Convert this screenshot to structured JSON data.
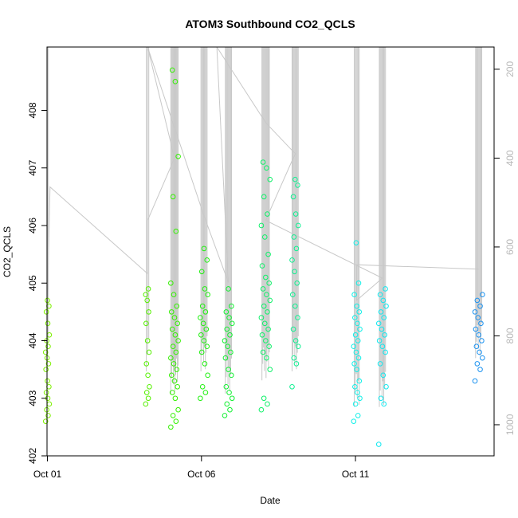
{
  "chart_data": {
    "type": "scatter",
    "title": "ATOM3 Southbound CO2_QCLS",
    "xlabel": "Date",
    "ylabel": "CO2_QCLS",
    "xlim": [
      "2017-09-30T23:40",
      "2017-10-15T12:00"
    ],
    "ylim": [
      402,
      409.1
    ],
    "y2lim": [
      1070,
      150
    ],
    "x_ticks": [
      "Oct 01",
      "Oct 06",
      "Oct 11"
    ],
    "x_tick_values": [
      "2017-10-01",
      "2017-10-06",
      "2017-10-11"
    ],
    "y_ticks": [
      402,
      403,
      404,
      405,
      406,
      407,
      408
    ],
    "y2_ticks": [
      200,
      400,
      600,
      800,
      1000
    ],
    "y2_reversed": true,
    "grid": false,
    "point_style": "open-circle",
    "line_color": "#c8c8c8",
    "point_series": [
      {
        "x": "2017-10-01T00:00",
        "spread": "0.06",
        "color": "#7df000",
        "y": [
          402.6,
          402.7,
          402.8,
          402.9,
          403.0,
          403.1,
          403.2,
          403.3,
          403.5,
          403.6,
          403.7,
          403.8,
          403.9,
          404.0,
          404.1,
          404.3,
          404.5,
          404.6,
          404.7
        ]
      },
      {
        "x": "2017-10-04T06:00",
        "spread": "0.06",
        "color": "#55f000",
        "y": [
          402.9,
          403.0,
          403.1,
          403.2,
          403.4,
          403.6,
          403.8,
          404.0,
          404.3,
          404.5,
          404.7,
          404.8,
          404.9
        ]
      },
      {
        "x": "2017-10-05T03:00",
        "spread": "0.12",
        "color": "#33f000",
        "y": [
          402.5,
          402.6,
          402.7,
          402.8,
          403.0,
          403.1,
          403.2,
          403.3,
          403.4,
          403.5,
          403.6,
          403.7,
          403.8,
          403.9,
          404.0,
          404.1,
          404.2,
          404.3,
          404.4,
          404.5,
          404.6,
          404.8,
          405.0,
          405.9,
          406.5,
          407.2,
          408.5,
          408.7
        ]
      },
      {
        "x": "2017-10-06T02:00",
        "spread": "0.12",
        "color": "#20f010",
        "y": [
          403.0,
          403.1,
          403.2,
          403.4,
          403.6,
          403.8,
          403.9,
          404.0,
          404.1,
          404.2,
          404.3,
          404.4,
          404.5,
          404.6,
          404.8,
          404.9,
          405.2,
          405.4,
          405.6
        ]
      },
      {
        "x": "2017-10-06T21:00",
        "spread": "0.12",
        "color": "#10f030",
        "y": [
          402.7,
          402.8,
          402.9,
          403.0,
          403.1,
          403.2,
          403.4,
          403.5,
          403.7,
          403.8,
          403.9,
          404.0,
          404.1,
          404.2,
          404.3,
          404.4,
          404.5,
          404.6,
          404.9
        ]
      },
      {
        "x": "2017-10-08T02:00",
        "spread": "0.14",
        "color": "#10f06a",
        "y": [
          402.8,
          402.9,
          403.0,
          403.5,
          403.7,
          403.8,
          403.9,
          404.0,
          404.1,
          404.2,
          404.3,
          404.4,
          404.5,
          404.6,
          404.7,
          404.8,
          404.9,
          405.0,
          405.1,
          405.3,
          405.5,
          405.8,
          406.0,
          406.2,
          406.5,
          406.8,
          407.0,
          407.1
        ]
      },
      {
        "x": "2017-10-09T01:00",
        "spread": "0.1",
        "color": "#10f092",
        "y": [
          403.2,
          403.6,
          403.7,
          403.9,
          404.0,
          404.2,
          404.4,
          404.6,
          404.8,
          405.0,
          405.2,
          405.4,
          405.6,
          405.8,
          406.0,
          406.2,
          406.5,
          406.7,
          406.8
        ]
      },
      {
        "x": "2017-10-11T01:00",
        "spread": "0.1",
        "color": "#10f0e8",
        "y": [
          402.6,
          402.7,
          402.9,
          403.0,
          403.1,
          403.2,
          403.3,
          403.5,
          403.6,
          403.7,
          403.8,
          403.9,
          404.0,
          404.1,
          404.2,
          404.3,
          404.4,
          404.5,
          404.6,
          404.8,
          405.0,
          405.7
        ]
      },
      {
        "x": "2017-10-11T21:00",
        "spread": "0.12",
        "color": "#10e8f0",
        "y": [
          402.2,
          402.9,
          403.0,
          403.2,
          403.4,
          403.6,
          403.8,
          403.9,
          404.0,
          404.1,
          404.2,
          404.3,
          404.4,
          404.5,
          404.6,
          404.7,
          404.8,
          404.9
        ]
      },
      {
        "x": "2017-10-15T00:00",
        "spread": "0.12",
        "color": "#1b92f0",
        "y": [
          403.3,
          403.5,
          403.6,
          403.7,
          403.8,
          403.9,
          404.0,
          404.1,
          404.2,
          404.3,
          404.4,
          404.5,
          404.6,
          404.7,
          404.8
        ]
      }
    ],
    "pressure_profiles": [
      {
        "x": "2017-10-01T00:00",
        "spread": "0.03",
        "count": "3",
        "top_hpa": "150",
        "bottom_hpa": "880"
      },
      {
        "x": "2017-10-04T06:00",
        "spread": "0.04",
        "count": "3",
        "top_hpa": "150",
        "bottom_hpa": "880"
      },
      {
        "x": "2017-10-05T03:00",
        "spread": "0.12",
        "count": "10",
        "top_hpa": "150",
        "bottom_hpa": "930"
      },
      {
        "x": "2017-10-06T02:00",
        "spread": "0.1",
        "count": "8",
        "top_hpa": "150",
        "bottom_hpa": "880"
      },
      {
        "x": "2017-10-06T21:00",
        "spread": "0.1",
        "count": "8",
        "top_hpa": "150",
        "bottom_hpa": "930"
      },
      {
        "x": "2017-10-08T02:00",
        "spread": "0.12",
        "count": "10",
        "top_hpa": "150",
        "bottom_hpa": "900"
      },
      {
        "x": "2017-10-09T01:00",
        "spread": "0.1",
        "count": "8",
        "top_hpa": "150",
        "bottom_hpa": "880"
      },
      {
        "x": "2017-10-11T01:00",
        "spread": "0.08",
        "count": "6",
        "top_hpa": "150",
        "bottom_hpa": "960"
      },
      {
        "x": "2017-10-11T21:00",
        "spread": "0.1",
        "count": "8",
        "top_hpa": "150",
        "bottom_hpa": "960"
      },
      {
        "x": "2017-10-15T00:00",
        "spread": "0.1",
        "count": "8",
        "top_hpa": "150",
        "bottom_hpa": "850"
      }
    ],
    "transit_path": [
      {
        "x": "2017-10-01T00:00",
        "p": 730
      },
      {
        "x": "2017-10-01T02:00",
        "p": 465
      },
      {
        "x": "2017-10-04T06:00",
        "p": 660
      },
      {
        "x": "2017-10-04T06:00",
        "p": 540
      },
      {
        "x": "2017-10-05T03:00",
        "p": 400
      },
      {
        "x": "2017-10-04T06:00",
        "p": 150
      },
      {
        "x": "2017-10-06T02:00",
        "p": 530
      },
      {
        "x": "2017-10-06T21:00",
        "p": 680
      },
      {
        "x": "2017-10-06T12:00",
        "p": 150
      },
      {
        "x": "2017-10-08T02:00",
        "p": 320
      },
      {
        "x": "2017-10-09T01:00",
        "p": 390
      },
      {
        "x": "2017-10-08T02:00",
        "p": 540
      },
      {
        "x": "2017-10-11T21:00",
        "p": 670
      },
      {
        "x": "2017-10-11T01:00",
        "p": 720
      },
      {
        "x": "2017-10-11T01:00",
        "p": 640
      },
      {
        "x": "2017-10-15T00:00",
        "p": 650
      }
    ]
  }
}
